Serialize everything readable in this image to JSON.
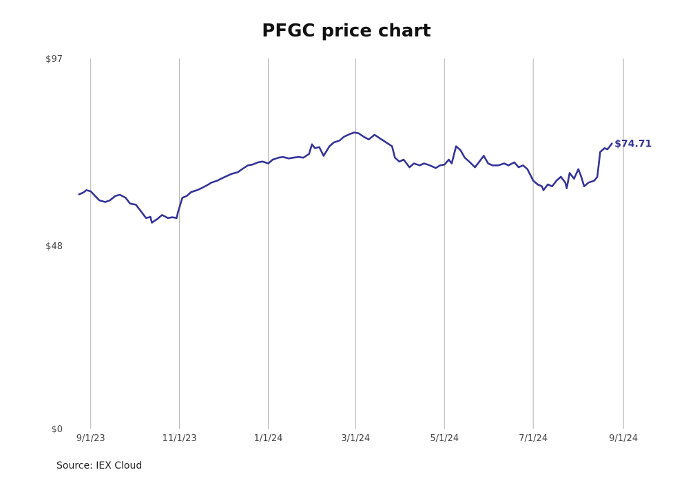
{
  "chart_data": {
    "type": "line",
    "title": "PFGC price chart",
    "source": "Source: IEX Cloud",
    "ylim": [
      0,
      97
    ],
    "y_ticks": [
      {
        "value": 0,
        "label": "$0"
      },
      {
        "value": 48,
        "label": "$48"
      },
      {
        "value": 97,
        "label": "$97"
      }
    ],
    "x_range": [
      "2023-08-17",
      "2024-09-08"
    ],
    "x_ticks": [
      {
        "date": "2023-09-01",
        "label": "9/1/23"
      },
      {
        "date": "2023-11-01",
        "label": "11/1/23"
      },
      {
        "date": "2024-01-01",
        "label": "1/1/24"
      },
      {
        "date": "2024-03-01",
        "label": "3/1/24"
      },
      {
        "date": "2024-05-01",
        "label": "5/1/24"
      },
      {
        "date": "2024-07-01",
        "label": "7/1/24"
      },
      {
        "date": "2024-09-01",
        "label": "9/1/24"
      }
    ],
    "grid": "vertical",
    "series": [
      {
        "color": "#333399",
        "end_label": "$74.71",
        "points": [
          [
            "2023-08-24",
            61.4
          ],
          [
            "2023-08-27",
            61.9
          ],
          [
            "2023-08-29",
            62.5
          ],
          [
            "2023-09-01",
            62.2
          ],
          [
            "2023-09-04",
            61.0
          ],
          [
            "2023-09-07",
            59.8
          ],
          [
            "2023-09-11",
            59.4
          ],
          [
            "2023-09-14",
            59.8
          ],
          [
            "2023-09-18",
            61.0
          ],
          [
            "2023-09-21",
            61.3
          ],
          [
            "2023-09-25",
            60.5
          ],
          [
            "2023-09-28",
            59.0
          ],
          [
            "2023-10-02",
            58.7
          ],
          [
            "2023-10-05",
            57.2
          ],
          [
            "2023-10-09",
            55.2
          ],
          [
            "2023-10-12",
            55.5
          ],
          [
            "2023-10-13",
            54.0
          ],
          [
            "2023-10-17",
            55.0
          ],
          [
            "2023-10-20",
            56.0
          ],
          [
            "2023-10-24",
            55.2
          ],
          [
            "2023-10-27",
            55.4
          ],
          [
            "2023-10-30",
            55.2
          ],
          [
            "2023-10-31",
            56.8
          ],
          [
            "2023-11-03",
            60.5
          ],
          [
            "2023-11-06",
            61.0
          ],
          [
            "2023-11-09",
            62.0
          ],
          [
            "2023-11-13",
            62.5
          ],
          [
            "2023-11-16",
            63.0
          ],
          [
            "2023-11-20",
            63.8
          ],
          [
            "2023-11-23",
            64.5
          ],
          [
            "2023-11-27",
            65.0
          ],
          [
            "2023-11-30",
            65.6
          ],
          [
            "2023-12-04",
            66.3
          ],
          [
            "2023-12-07",
            66.8
          ],
          [
            "2023-12-11",
            67.2
          ],
          [
            "2023-12-14",
            68.0
          ],
          [
            "2023-12-18",
            69.0
          ],
          [
            "2023-12-21",
            69.2
          ],
          [
            "2023-12-25",
            69.8
          ],
          [
            "2023-12-28",
            70.0
          ],
          [
            "2024-01-01",
            69.5
          ],
          [
            "2024-01-04",
            70.5
          ],
          [
            "2024-01-08",
            71.0
          ],
          [
            "2024-01-11",
            71.2
          ],
          [
            "2024-01-15",
            70.8
          ],
          [
            "2024-01-18",
            71.0
          ],
          [
            "2024-01-22",
            71.2
          ],
          [
            "2024-01-25",
            71.0
          ],
          [
            "2024-01-29",
            72.0
          ],
          [
            "2024-01-31",
            74.5
          ],
          [
            "2024-02-02",
            73.5
          ],
          [
            "2024-02-05",
            73.8
          ],
          [
            "2024-02-08",
            71.5
          ],
          [
            "2024-02-12",
            74.0
          ],
          [
            "2024-02-15",
            75.0
          ],
          [
            "2024-02-19",
            75.5
          ],
          [
            "2024-02-22",
            76.5
          ],
          [
            "2024-02-26",
            77.2
          ],
          [
            "2024-02-29",
            77.6
          ],
          [
            "2024-03-03",
            77.4
          ],
          [
            "2024-03-07",
            76.4
          ],
          [
            "2024-03-10",
            75.8
          ],
          [
            "2024-03-14",
            77.0
          ],
          [
            "2024-03-18",
            76.0
          ],
          [
            "2024-03-22",
            75.0
          ],
          [
            "2024-03-26",
            74.0
          ],
          [
            "2024-03-28",
            71.0
          ],
          [
            "2024-03-31",
            70.0
          ],
          [
            "2024-04-03",
            70.5
          ],
          [
            "2024-04-07",
            68.5
          ],
          [
            "2024-04-10",
            69.5
          ],
          [
            "2024-04-14",
            69.0
          ],
          [
            "2024-04-17",
            69.5
          ],
          [
            "2024-04-21",
            69.0
          ],
          [
            "2024-04-25",
            68.3
          ],
          [
            "2024-04-28",
            69.0
          ],
          [
            "2024-05-01",
            69.2
          ],
          [
            "2024-05-04",
            70.5
          ],
          [
            "2024-05-06",
            69.5
          ],
          [
            "2024-05-09",
            74.0
          ],
          [
            "2024-05-12",
            73.0
          ],
          [
            "2024-05-15",
            71.0
          ],
          [
            "2024-05-18",
            70.0
          ],
          [
            "2024-05-22",
            68.5
          ],
          [
            "2024-05-25",
            70.0
          ],
          [
            "2024-05-28",
            71.5
          ],
          [
            "2024-05-31",
            69.5
          ],
          [
            "2024-06-03",
            69.0
          ],
          [
            "2024-06-07",
            69.0
          ],
          [
            "2024-06-11",
            69.5
          ],
          [
            "2024-06-14",
            69.0
          ],
          [
            "2024-06-18",
            69.8
          ],
          [
            "2024-06-21",
            68.5
          ],
          [
            "2024-06-24",
            69.0
          ],
          [
            "2024-06-27",
            68.0
          ],
          [
            "2024-07-01",
            65.0
          ],
          [
            "2024-07-04",
            64.0
          ],
          [
            "2024-07-07",
            63.5
          ],
          [
            "2024-07-08",
            62.5
          ],
          [
            "2024-07-11",
            64.0
          ],
          [
            "2024-07-14",
            63.5
          ],
          [
            "2024-07-17",
            65.0
          ],
          [
            "2024-07-20",
            66.0
          ],
          [
            "2024-07-23",
            64.5
          ],
          [
            "2024-07-24",
            63.0
          ],
          [
            "2024-07-26",
            67.0
          ],
          [
            "2024-07-29",
            65.5
          ],
          [
            "2024-08-01",
            68.0
          ],
          [
            "2024-08-03",
            66.0
          ],
          [
            "2024-08-05",
            63.5
          ],
          [
            "2024-08-08",
            64.5
          ],
          [
            "2024-08-12",
            65.0
          ],
          [
            "2024-08-14",
            66.0
          ],
          [
            "2024-08-16",
            72.5
          ],
          [
            "2024-08-19",
            73.5
          ],
          [
            "2024-08-21",
            73.2
          ],
          [
            "2024-08-23",
            74.2
          ],
          [
            "2024-08-24",
            74.71
          ]
        ]
      }
    ]
  }
}
